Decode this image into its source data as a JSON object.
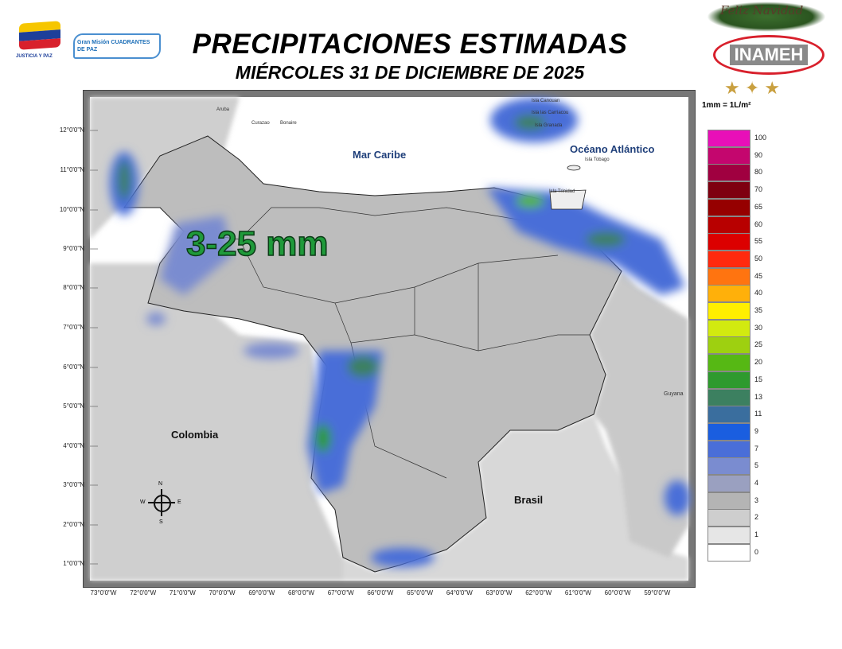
{
  "header": {
    "title": "PRECIPITACIONES ESTIMADAS",
    "subtitle": "MIÉRCOLES 31 DE DICIEMBRE DE 2025",
    "logo_left_1": "JUSTICIA Y PAZ",
    "logo_left_2": "Gran Misión CUADRANTES DE PAZ",
    "logo_right": "INAMEH",
    "logo_right_banner": "Feliz Navidad"
  },
  "map": {
    "unit_note": "1mm = 1L/m²",
    "annotation": "3-25 mm",
    "lat_labels": [
      "12°0'0\"N",
      "11°0'0\"N",
      "10°0'0\"N",
      "9°0'0\"N",
      "8°0'0\"N",
      "7°0'0\"N",
      "6°0'0\"N",
      "5°0'0\"N",
      "4°0'0\"N",
      "3°0'0\"N",
      "2°0'0\"N",
      "1°0'0\"N"
    ],
    "lon_labels": [
      "73°0'0\"W",
      "72°0'0\"W",
      "71°0'0\"W",
      "70°0'0\"W",
      "69°0'0\"W",
      "68°0'0\"W",
      "67°0'0\"W",
      "66°0'0\"W",
      "65°0'0\"W",
      "64°0'0\"W",
      "63°0'0\"W",
      "62°0'0\"W",
      "61°0'0\"W",
      "60°0'0\"W",
      "59°0'0\"W"
    ],
    "places": {
      "aruba": "Aruba",
      "curazao": "Curazao",
      "bonaire": "Bonaire",
      "mar_caribe": "Mar Caribe",
      "oceano": "Océano Atlántico",
      "canouan": "Isla Canouan",
      "carriacou": "Isla las Carriacou",
      "granada": "Isla Granada",
      "tobago": "Isla Tobago",
      "trinidad": "Isla Trinidad",
      "guyana": "Guyana",
      "colombia": "Colombia",
      "brasil": "Brasil"
    },
    "compass": {
      "n": "N",
      "s": "S",
      "e": "E",
      "w": "W"
    }
  },
  "legend": {
    "items": [
      {
        "label": "100",
        "color": "#e80fb8"
      },
      {
        "label": "90",
        "color": "#c4066e"
      },
      {
        "label": "80",
        "color": "#a00040"
      },
      {
        "label": "70",
        "color": "#7e0010"
      },
      {
        "label": "65",
        "color": "#960000"
      },
      {
        "label": "60",
        "color": "#b80000"
      },
      {
        "label": "55",
        "color": "#dc0000"
      },
      {
        "label": "50",
        "color": "#ff2a0e"
      },
      {
        "label": "45",
        "color": "#ff7410"
      },
      {
        "label": "40",
        "color": "#ffb00a"
      },
      {
        "label": "35",
        "color": "#ffee00"
      },
      {
        "label": "30",
        "color": "#d2ea10"
      },
      {
        "label": "25",
        "color": "#9ed010"
      },
      {
        "label": "20",
        "color": "#56b814"
      },
      {
        "label": "15",
        "color": "#2e9a2e"
      },
      {
        "label": "13",
        "color": "#3c8060"
      },
      {
        "label": "11",
        "color": "#3a6e9e"
      },
      {
        "label": "9",
        "color": "#1a5ee0"
      },
      {
        "label": "7",
        "color": "#4a6ed8"
      },
      {
        "label": "5",
        "color": "#7a8cd0"
      },
      {
        "label": "4",
        "color": "#9aa0c0"
      },
      {
        "label": "3",
        "color": "#b4b4b4"
      },
      {
        "label": "2",
        "color": "#cecece"
      },
      {
        "label": "1",
        "color": "#e6e6e6"
      },
      {
        "label": "0",
        "color": "#ffffff"
      }
    ]
  }
}
